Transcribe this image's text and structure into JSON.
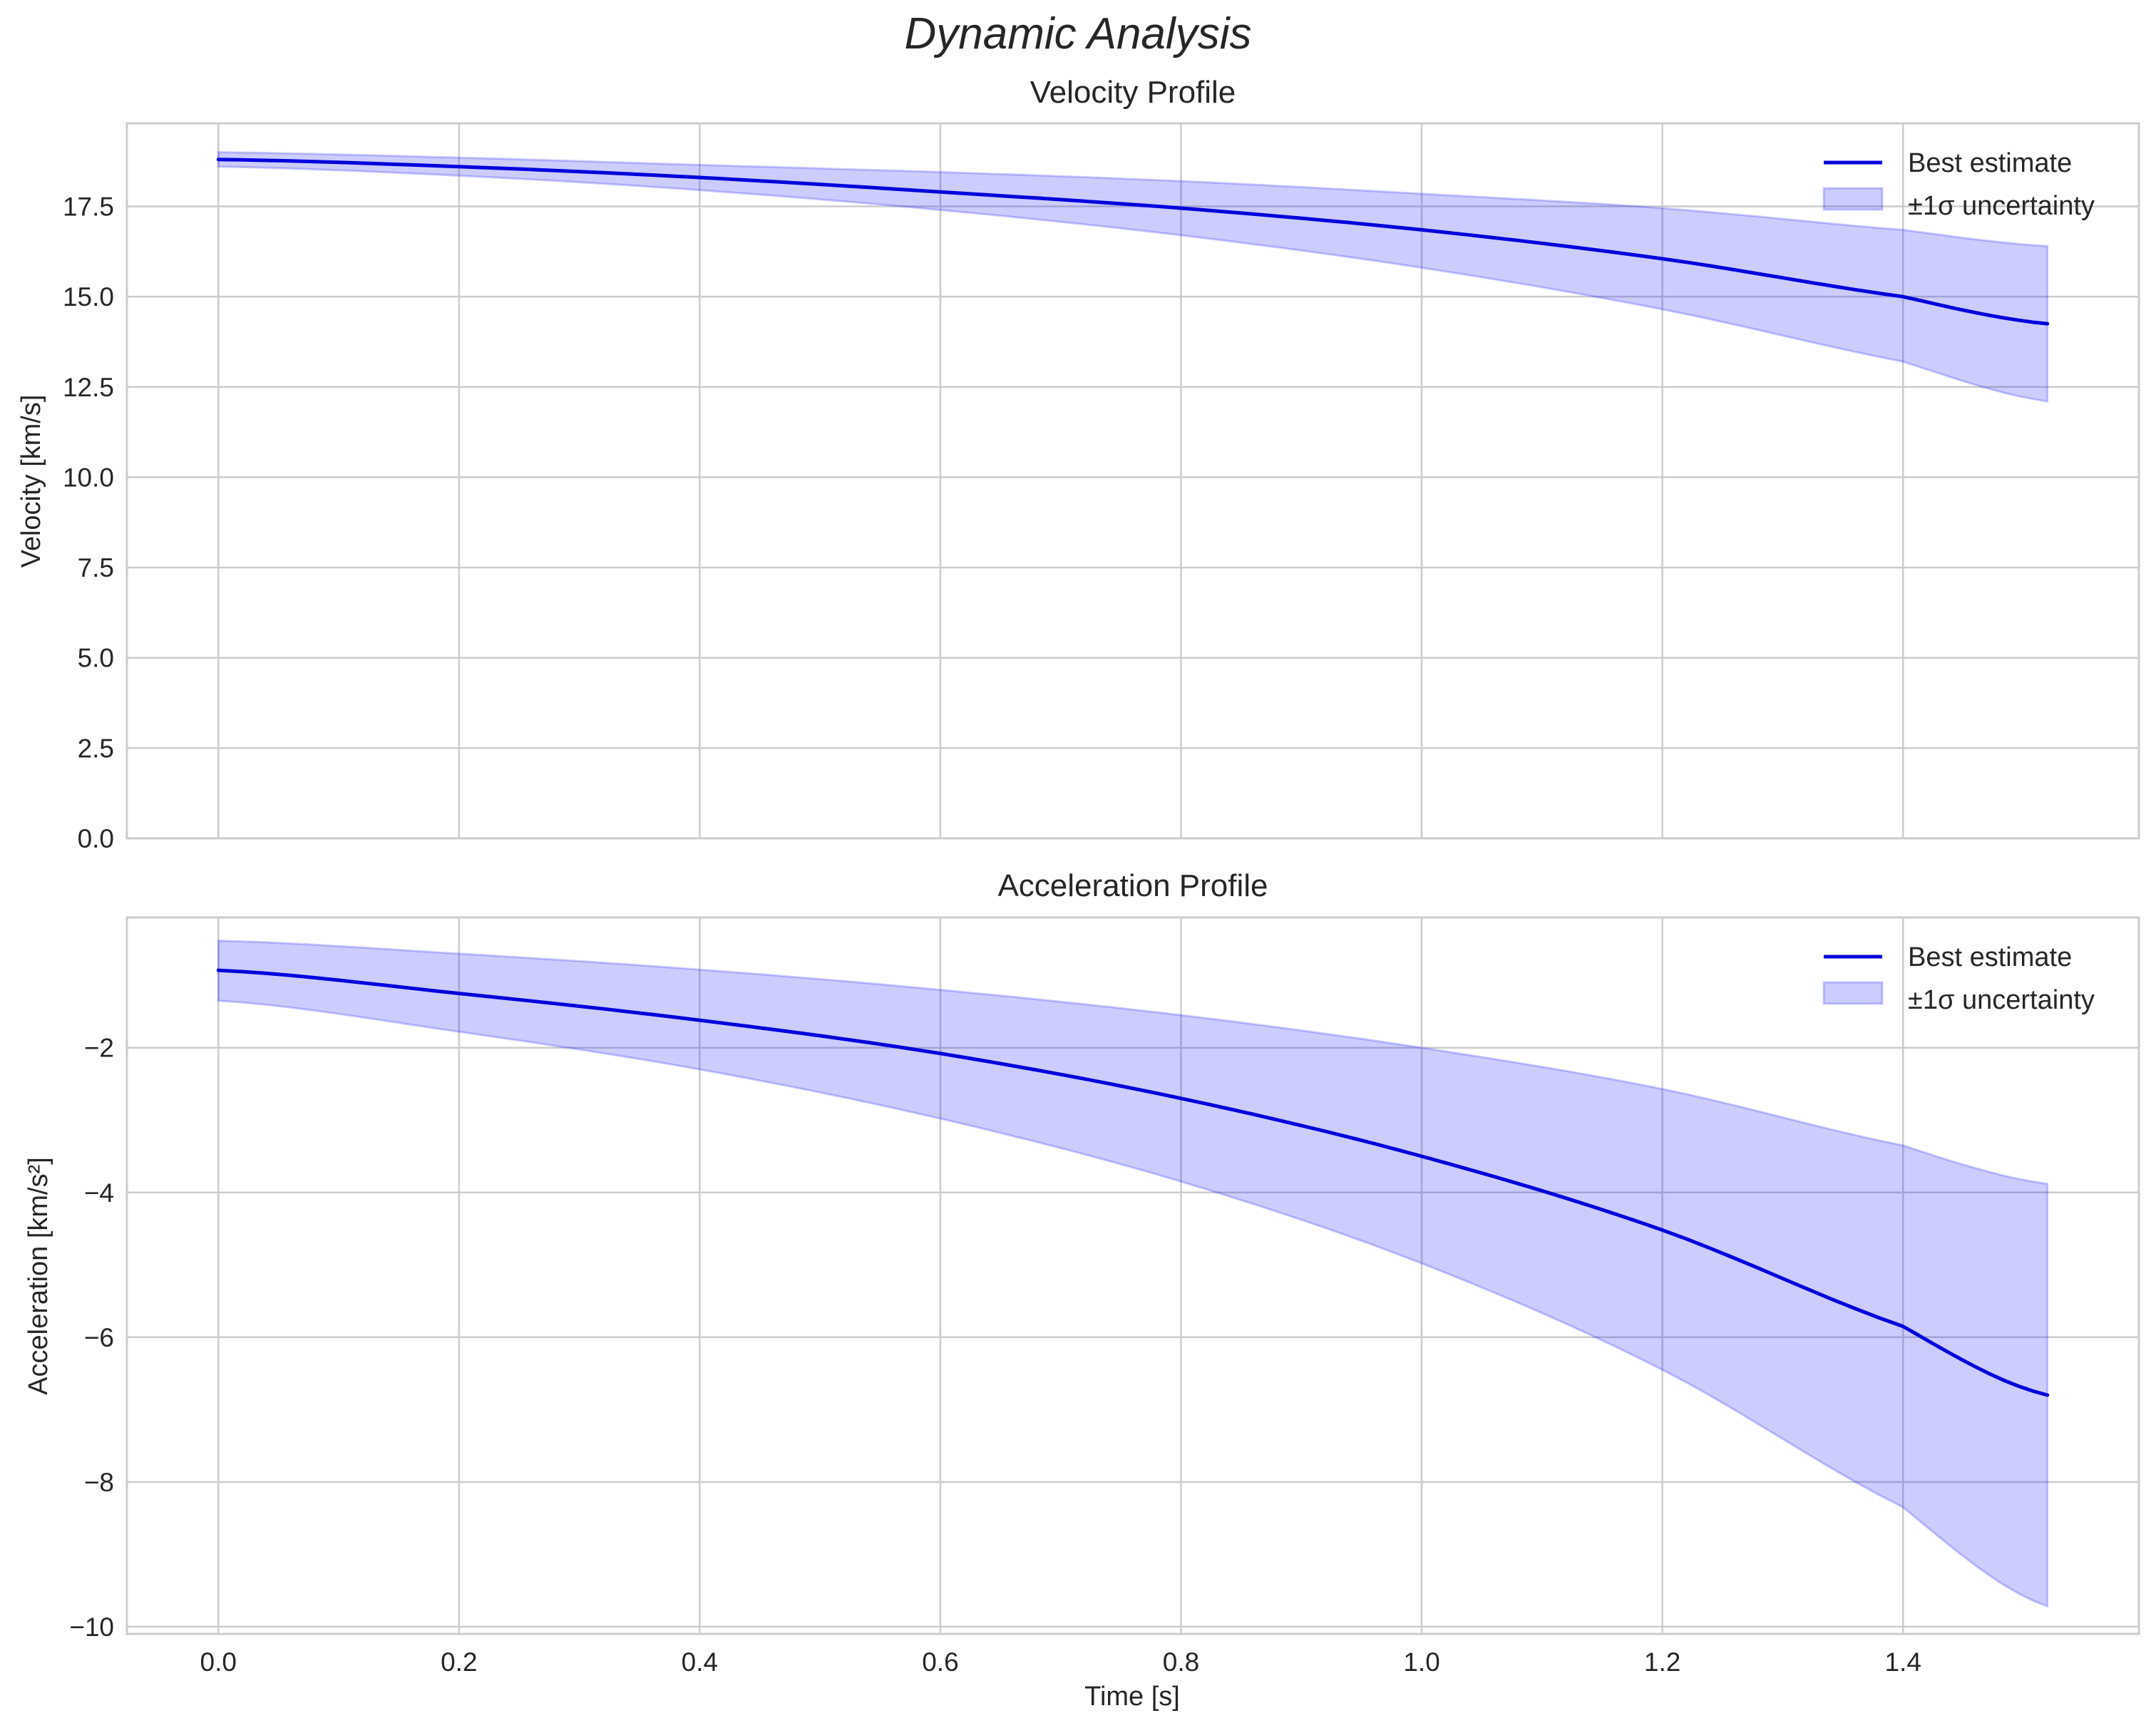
{
  "figure": {
    "title": "Dynamic Analysis"
  },
  "panels": [
    {
      "title": "Velocity Profile",
      "ylabel": "Velocity [km/s]",
      "yticks": [
        "0.0",
        "2.5",
        "5.0",
        "7.5",
        "10.0",
        "12.5",
        "15.0",
        "17.5"
      ],
      "legend": [
        "Best estimate",
        "±1σ uncertainty"
      ]
    },
    {
      "title": "Acceleration Profile",
      "ylabel": "Acceleration [km/s²]",
      "yticks": [
        "−10",
        "−8",
        "−6",
        "−4",
        "−2"
      ],
      "legend": [
        "Best estimate",
        "±1σ uncertainty"
      ]
    }
  ],
  "xaxis": {
    "label": "Time [s]",
    "ticks": [
      "0.0",
      "0.2",
      "0.4",
      "0.6",
      "0.8",
      "1.0",
      "1.2",
      "1.4"
    ]
  },
  "colors": {
    "line": "#0000dd",
    "band_fill": "#0000ff",
    "band_alpha": 0.2,
    "grid": "#cccccc",
    "text": "#262626"
  },
  "chart_data": [
    {
      "type": "line",
      "title": "Velocity Profile",
      "xlabel": "Time [s]",
      "ylabel": "Velocity [km/s]",
      "ylim": [
        0,
        19.8
      ],
      "xlim": [
        -0.076,
        1.596
      ],
      "grid": true,
      "legend_position": "upper right",
      "x": [
        0.0,
        0.2,
        0.4,
        0.6,
        0.8,
        1.0,
        1.2,
        1.4,
        1.52
      ],
      "series": [
        {
          "name": "Best estimate",
          "values": [
            18.8,
            18.6,
            18.3,
            17.9,
            17.45,
            16.85,
            16.05,
            15.0,
            14.25
          ]
        },
        {
          "name": "±1σ uncertainty (upper)",
          "values": [
            19.0,
            18.85,
            18.65,
            18.45,
            18.2,
            17.85,
            17.45,
            16.85,
            16.4
          ]
        },
        {
          "name": "±1σ uncertainty (lower)",
          "values": [
            18.6,
            18.35,
            17.95,
            17.4,
            16.7,
            15.8,
            14.65,
            13.2,
            12.1
          ]
        }
      ]
    },
    {
      "type": "line",
      "title": "Acceleration Profile",
      "xlabel": "Time [s]",
      "ylabel": "Acceleration [km/s²]",
      "ylim": [
        -10.1,
        -0.2
      ],
      "xlim": [
        -0.076,
        1.596
      ],
      "grid": true,
      "legend_position": "upper right",
      "x": [
        0.0,
        0.2,
        0.4,
        0.6,
        0.8,
        1.0,
        1.2,
        1.4,
        1.52
      ],
      "series": [
        {
          "name": "Best estimate",
          "values": [
            -0.93,
            -1.25,
            -1.62,
            -2.08,
            -2.7,
            -3.5,
            -4.52,
            -5.85,
            -6.8
          ]
        },
        {
          "name": "±1σ uncertainty (upper)",
          "values": [
            -0.52,
            -0.7,
            -0.92,
            -1.2,
            -1.55,
            -2.0,
            -2.57,
            -3.35,
            -3.88
          ]
        },
        {
          "name": "±1σ uncertainty (lower)",
          "values": [
            -1.35,
            -1.78,
            -2.3,
            -2.98,
            -3.85,
            -4.98,
            -6.45,
            -8.35,
            -9.72
          ]
        }
      ]
    }
  ]
}
